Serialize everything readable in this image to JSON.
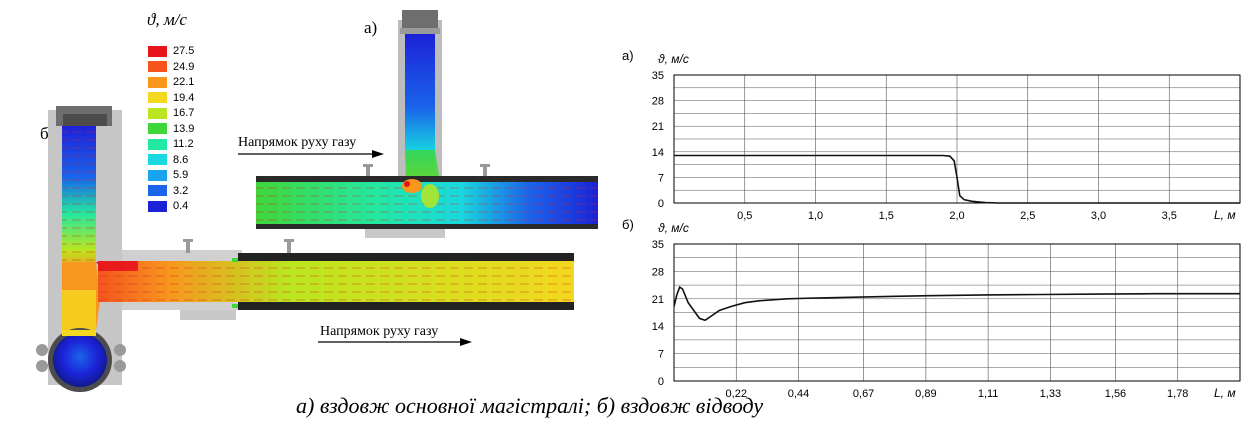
{
  "simulation": {
    "legend": {
      "unit_symbol": "ϑ",
      "unit": "м/с",
      "levels": [
        {
          "value": "27.5",
          "color": "#e8141c"
        },
        {
          "value": "24.9",
          "color": "#f5541d"
        },
        {
          "value": "22.1",
          "color": "#f8961e"
        },
        {
          "value": "19.4",
          "color": "#f2d81e"
        },
        {
          "value": "16.7",
          "color": "#b9e61e"
        },
        {
          "value": "13.9",
          "color": "#3fd63a"
        },
        {
          "value": "11.2",
          "color": "#22e8a2"
        },
        {
          "value": "8.6",
          "color": "#18d8e0"
        },
        {
          "value": "5.9",
          "color": "#1aa4ee"
        },
        {
          "value": "3.2",
          "color": "#1a64ea"
        },
        {
          "value": "0.4",
          "color": "#1c22d8"
        }
      ]
    },
    "panel_a_label": "а)",
    "panel_b_label": "б)",
    "gas_direction_top": "Напрямок руху газу",
    "gas_direction_bottom": "Напрямок руху газу"
  },
  "chart_data": [
    {
      "type": "line",
      "panel_label": "а)",
      "ylabel": "ϑ, м/с",
      "xlabel": "L, м",
      "ylim": [
        0,
        35
      ],
      "yticks": [
        "0",
        "7",
        "14",
        "21",
        "28",
        "35"
      ],
      "xlim": [
        0,
        4.0
      ],
      "xticks": [
        "0,5",
        "1,0",
        "1,5",
        "2,0",
        "2,5",
        "3,0",
        "3,5"
      ],
      "grid": true,
      "series": [
        {
          "x": [
            0,
            0.5,
            1.0,
            1.5,
            1.9,
            1.95,
            1.98,
            2.0,
            2.02,
            2.05,
            2.1,
            2.15,
            2.2,
            2.3,
            2.5,
            3.0,
            3.5,
            4.0
          ],
          "y": [
            13,
            13,
            13,
            13,
            13,
            12.8,
            11.5,
            7,
            2,
            0.9,
            0.5,
            0.3,
            0.1,
            0,
            0,
            0,
            0,
            0
          ]
        }
      ]
    },
    {
      "type": "line",
      "panel_label": "б)",
      "ylabel": "ϑ, м/с",
      "xlabel": "L, м",
      "ylim": [
        0,
        35
      ],
      "yticks": [
        "0",
        "7",
        "14",
        "21",
        "28",
        "35"
      ],
      "xlim": [
        0,
        2.0
      ],
      "xticks": [
        "0,22",
        "0,44",
        "0,67",
        "0,89",
        "1,11",
        "1,33",
        "1,56",
        "1,78"
      ],
      "grid": true,
      "series": [
        {
          "x": [
            0,
            0.01,
            0.02,
            0.03,
            0.05,
            0.07,
            0.09,
            0.11,
            0.13,
            0.16,
            0.2,
            0.25,
            0.3,
            0.4,
            0.5,
            0.7,
            0.9,
            1.1,
            1.3,
            1.5,
            1.7,
            1.9,
            2.0
          ],
          "y": [
            19,
            22,
            24,
            23.5,
            20,
            18,
            16,
            15.5,
            16.5,
            18,
            19,
            20,
            20.5,
            21,
            21.2,
            21.5,
            21.8,
            22,
            22.1,
            22.2,
            22.3,
            22.3,
            22.3
          ]
        }
      ]
    }
  ],
  "caption": {
    "text": "а) вздовж основної магістралі;   б)  вздовж відводу"
  }
}
